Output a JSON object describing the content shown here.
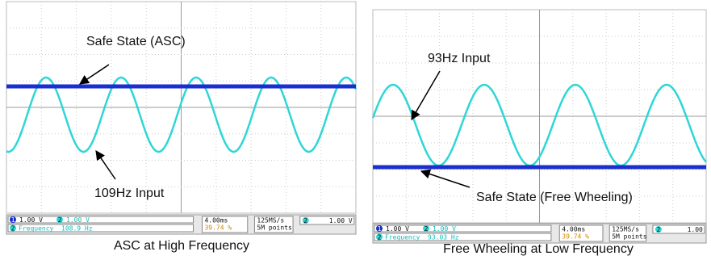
{
  "panels": [
    {
      "annotations": [
        "Safe State (ASC)",
        "109Hz Input"
      ],
      "status": {
        "ch1_id": "1",
        "ch1": "1.00 V",
        "ch2_id": "2",
        "ch2": "1.00 V",
        "timebase": "4.00ms",
        "sample_rate": "125MS/s",
        "points": "5M points",
        "trigger_id": "2",
        "trigger_level": "1.00 V",
        "measure_id": "2",
        "measure_label": "Frequency",
        "measure_value": "108.9 Hz",
        "duty": "39.74 %"
      },
      "caption": "ASC at High Frequency"
    },
    {
      "annotations": [
        "93Hz Input",
        "Safe State (Free Wheeling)"
      ],
      "status": {
        "ch1_id": "1",
        "ch1": "1.00 V",
        "ch2_id": "2",
        "ch2": "1.00 V",
        "timebase": "4.00ms",
        "sample_rate": "125MS/s",
        "points": "5M points",
        "trigger_id": "2",
        "trigger_level": "1.00",
        "measure_id": "2",
        "measure_label": "Frequency",
        "measure_value": "93.03 Hz",
        "duty": "39.74 %"
      },
      "caption": "Free Wheeling at Low Frequency"
    }
  ]
}
